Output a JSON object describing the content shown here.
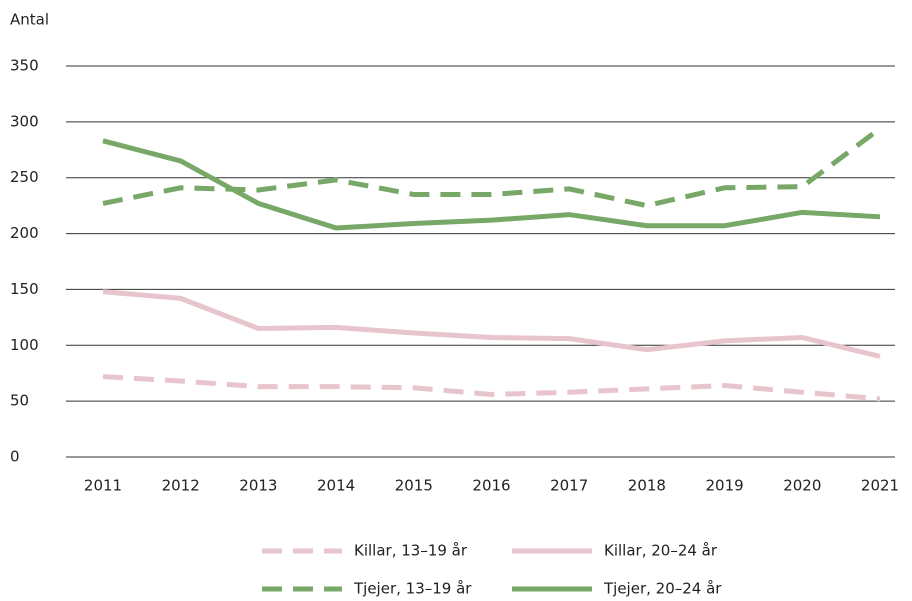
{
  "chart_data": {
    "type": "line",
    "y_label": "Antal",
    "categories": [
      "2011",
      "2012",
      "2013",
      "2014",
      "2015",
      "2016",
      "2017",
      "2018",
      "2019",
      "2020",
      "2021"
    ],
    "series": [
      {
        "name": "Killar, 13–19 år",
        "color": "#e8c4cc",
        "dashed": true,
        "values": [
          72,
          68,
          63,
          63,
          62,
          56,
          58,
          61,
          64,
          58,
          52
        ]
      },
      {
        "name": "Killar, 20–24 år",
        "color": "#e8c4cc",
        "dashed": false,
        "values": [
          148,
          142,
          115,
          116,
          111,
          107,
          106,
          96,
          104,
          107,
          90
        ]
      },
      {
        "name": "Tjejer, 13–19 år",
        "color": "#77a867",
        "dashed": true,
        "values": [
          227,
          241,
          239,
          248,
          235,
          235,
          240,
          225,
          241,
          242,
          294
        ]
      },
      {
        "name": "Tjejer, 20–24 år",
        "color": "#77a867",
        "dashed": false,
        "values": [
          283,
          265,
          227,
          205,
          209,
          212,
          217,
          207,
          207,
          219,
          215
        ]
      }
    ],
    "ylim": [
      0,
      350
    ],
    "yticks": [
      0,
      50,
      100,
      150,
      200,
      250,
      300,
      350
    ],
    "grid": true
  }
}
